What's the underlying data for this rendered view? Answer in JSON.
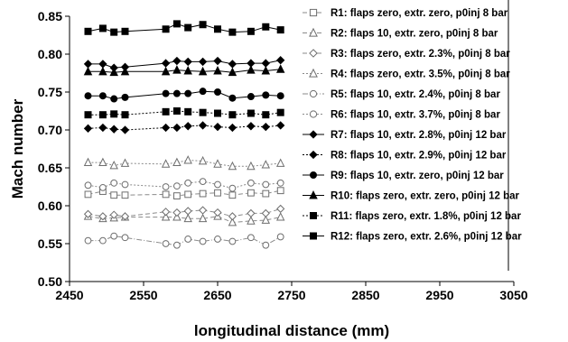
{
  "chart_data": {
    "type": "line",
    "xlabel": "longitudinal distance (mm)",
    "ylabel": "Mach number",
    "xlim": [
      2450,
      3050
    ],
    "ylim": [
      0.5,
      0.85
    ],
    "xticks": [
      "2450",
      "2550",
      "2650",
      "2750",
      "2850",
      "2950",
      "3050"
    ],
    "yticks": [
      "0.50",
      "0.55",
      "0.60",
      "0.65",
      "0.70",
      "0.75",
      "0.80",
      "0.85"
    ],
    "grid": false,
    "legend_position": "right",
    "x": [
      2475,
      2495,
      2510,
      2525,
      2580,
      2595,
      2610,
      2630,
      2650,
      2670,
      2695,
      2715,
      2735
    ],
    "series": [
      {
        "name": "R1: flaps zero, extr. zero, p0inj 8 bar",
        "marker": "square-open",
        "line": "dash",
        "values": [
          0.615,
          0.619,
          0.614,
          0.614,
          0.615,
          0.613,
          0.615,
          0.616,
          0.617,
          0.614,
          0.617,
          0.616,
          0.62
        ]
      },
      {
        "name": "R2: flaps 10, extr. zero, p0inj 8 bar",
        "marker": "triangle-open",
        "line": "dash",
        "values": [
          0.586,
          0.583,
          0.584,
          0.585,
          0.585,
          0.585,
          0.583,
          0.583,
          0.586,
          0.578,
          0.58,
          0.581,
          0.585
        ]
      },
      {
        "name": "R3: flaps zero, extr. 2.3%, p0inj 8 bar",
        "marker": "diamond-open",
        "line": "dash",
        "values": [
          0.589,
          0.586,
          0.588,
          0.586,
          0.592,
          0.591,
          0.593,
          0.594,
          0.591,
          0.586,
          0.59,
          0.59,
          0.596
        ]
      },
      {
        "name": "R4: flaps zero, extr. 3.5%, p0inj 8 bar",
        "marker": "triangle-open",
        "line": "dot",
        "values": [
          0.657,
          0.657,
          0.653,
          0.656,
          0.655,
          0.657,
          0.66,
          0.659,
          0.655,
          0.652,
          0.652,
          0.654,
          0.656
        ]
      },
      {
        "name": "R5: flaps 10, extr. 2.4%, p0inj 8 bar",
        "marker": "circle-open",
        "line": "dashdot",
        "values": [
          0.554,
          0.554,
          0.56,
          0.558,
          0.55,
          0.548,
          0.556,
          0.553,
          0.556,
          0.553,
          0.558,
          0.548,
          0.559
        ]
      },
      {
        "name": "R6: flaps 10, extr. 3.7%, p0inj 8 bar",
        "marker": "circle-open",
        "line": "dot",
        "values": [
          0.627,
          0.624,
          0.63,
          0.628,
          0.625,
          0.626,
          0.63,
          0.632,
          0.628,
          0.623,
          0.63,
          0.628,
          0.63
        ]
      },
      {
        "name": "R7: flaps 10, extr. 2.8%, p0inj 12 bar",
        "marker": "diamond-filled",
        "line": "solid",
        "values": [
          0.787,
          0.787,
          0.782,
          0.783,
          0.788,
          0.791,
          0.79,
          0.79,
          0.791,
          0.787,
          0.788,
          0.788,
          0.792
        ]
      },
      {
        "name": "R8: flaps 10, extr. 2.9%, p0inj 12 bar",
        "marker": "diamond-filled",
        "line": "dot",
        "values": [
          0.702,
          0.703,
          0.701,
          0.7,
          0.703,
          0.703,
          0.705,
          0.706,
          0.704,
          0.703,
          0.705,
          0.704,
          0.706
        ]
      },
      {
        "name": "R9: flaps 10, extr. zero, p0inj 12 bar",
        "marker": "circle-filled",
        "line": "solid",
        "values": [
          0.745,
          0.745,
          0.741,
          0.743,
          0.748,
          0.748,
          0.748,
          0.751,
          0.75,
          0.742,
          0.744,
          0.746,
          0.745
        ]
      },
      {
        "name": "R10: flaps zero, extr. zero, p0inj 12 bar",
        "marker": "triangle-filled",
        "line": "solid",
        "values": [
          0.777,
          0.777,
          0.776,
          0.777,
          0.777,
          0.779,
          0.778,
          0.777,
          0.778,
          0.776,
          0.779,
          0.778,
          0.78
        ]
      },
      {
        "name": "R11: flaps zero, extr. 1.8%, p0inj 12 bar",
        "marker": "square-filled",
        "line": "dot",
        "values": [
          0.72,
          0.72,
          0.721,
          0.72,
          0.724,
          0.725,
          0.724,
          0.723,
          0.722,
          0.72,
          0.722,
          0.72,
          0.723
        ]
      },
      {
        "name": "R12: flaps zero, extr. 2.6%, p0inj 12 bar",
        "marker": "square-filled",
        "line": "solid",
        "values": [
          0.83,
          0.834,
          0.829,
          0.83,
          0.833,
          0.84,
          0.835,
          0.839,
          0.833,
          0.829,
          0.83,
          0.836,
          0.832
        ]
      }
    ],
    "colors": {
      "marker_filled": "#000000",
      "line_dark": "#000000",
      "line_light": "#8a8a8a",
      "marker_open_stroke": "#6e6e6e"
    }
  }
}
